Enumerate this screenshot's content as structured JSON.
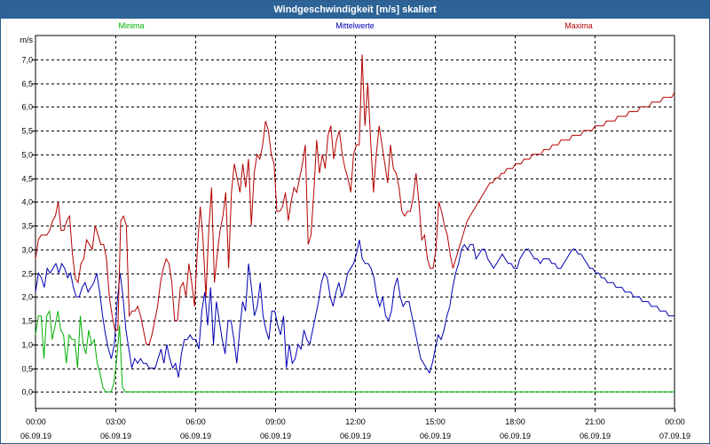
{
  "title": "Windgeschwindigkeit [m/s] skaliert",
  "chart_data": {
    "type": "line",
    "title": "Windgeschwindigkeit [m/s] skaliert",
    "ylabel": "m/s",
    "xlabel": "",
    "ylim": [
      -0.35,
      7.5
    ],
    "xlim": [
      0,
      24
    ],
    "grid": true,
    "legend_placement": "top",
    "y_ticks": [
      "0,0",
      "0,5",
      "1,0",
      "1,5",
      "2,0",
      "2,5",
      "3,0",
      "3,5",
      "4,0",
      "4,5",
      "5,0",
      "5,5",
      "6,0",
      "6,5",
      "7,0"
    ],
    "x_ticks": [
      {
        "time": "00:00",
        "date": "06.09.19"
      },
      {
        "time": "03:00",
        "date": "06.09.19"
      },
      {
        "time": "06:00",
        "date": "06.09.19"
      },
      {
        "time": "09:00",
        "date": "06.09.19"
      },
      {
        "time": "12:00",
        "date": "06.09.19"
      },
      {
        "time": "15:00",
        "date": "06.09.19"
      },
      {
        "time": "18:00",
        "date": "06.09.19"
      },
      {
        "time": "21:00",
        "date": "06.09.19"
      },
      {
        "time": "00:00",
        "date": "07.09.19"
      }
    ],
    "series": [
      {
        "name": "Minima",
        "color": "#00b000",
        "values": [
          1.2,
          1.6,
          1.6,
          0.7,
          1.6,
          1.7,
          1.1,
          1.4,
          1.7,
          1.3,
          1.2,
          0.6,
          1.2,
          1.1,
          1.1,
          0.5,
          1.6,
          1.0,
          0.8,
          1.3,
          1.0,
          1.1,
          0.6,
          0.4,
          0.1,
          0.0,
          0.0,
          0.0,
          0.2,
          0.7,
          1.4,
          0.1,
          0.0,
          0.0,
          0.0,
          0.0,
          0.0,
          0.0,
          0.0,
          0.0,
          0.0,
          0.0,
          0.0,
          0.0,
          0.0,
          0.0,
          0.0,
          0.0,
          0.0,
          0.0,
          0.0,
          0.0,
          0.0,
          0.0,
          0.0,
          0.0,
          0.0,
          0.0,
          0.0,
          0.0,
          0.0,
          0.0,
          0.0,
          0.0,
          0.0,
          0.0,
          0.0,
          0.0,
          0.0,
          0.0,
          0.0,
          0.0,
          0.0,
          0.0,
          0.0,
          0.0,
          0.0,
          0.0,
          0.0,
          0.0,
          0.0,
          0.0,
          0.0,
          0.0,
          0.0,
          0.0,
          0.0,
          0.0,
          0.0,
          0.0,
          0.0,
          0.0,
          0.0,
          0.0,
          0.0,
          0.0,
          0.0,
          0.0,
          0.0,
          0.0,
          0.0,
          0.0,
          0.0,
          0.0,
          0.0,
          0.0,
          0.0,
          0.0,
          0.0,
          0.0,
          0.0,
          0.0,
          0.0,
          0.0,
          0.0,
          0.0,
          0.0,
          0.0,
          0.0,
          0.0,
          0.0,
          0.0,
          0.0,
          0.0,
          0.0,
          0.0,
          0.0,
          0.0,
          0.0,
          0.0,
          0.0,
          0.0,
          0.0,
          0.0,
          0.0,
          0.0,
          0.0,
          0.0,
          0.0,
          0.0,
          0.0,
          0.0,
          0.0,
          0.0,
          0.0,
          0.0,
          0.0,
          0.0,
          0.0,
          0.0,
          0.0,
          0.0,
          0.0,
          0.0,
          0.0,
          0.0,
          0.0,
          0.0,
          0.0,
          0.0,
          0.0,
          0.0,
          0.0,
          0.0,
          0.0,
          0.0,
          0.0,
          0.0,
          0.0,
          0.0,
          0.0,
          0.0,
          0.0,
          0.0,
          0.0,
          0.0,
          0.0,
          0.0,
          0.0,
          0.0,
          0.0,
          0.0,
          0.0,
          0.0,
          0.0,
          0.0,
          0.0,
          0.0,
          0.0,
          0.0,
          0.0,
          0.0,
          0.0,
          0.0,
          0.0,
          0.0,
          0.0,
          0.0,
          0.0,
          0.0,
          0.0,
          0.0,
          0.0,
          0.0,
          0.0,
          0.0,
          0.0,
          0.0,
          0.0,
          0.0,
          0.0,
          0.0,
          0.0,
          0.0,
          0.0,
          0.0,
          0.0,
          0.0,
          0.0,
          0.0,
          0.0,
          0.0,
          0.0,
          0.0,
          0.0,
          0.0,
          0.0,
          0.0,
          0.0
        ]
      },
      {
        "name": "Mittelwerte",
        "color": "#0000b4",
        "values": [
          2.1,
          2.5,
          2.4,
          2.2,
          2.6,
          2.5,
          2.6,
          2.7,
          2.5,
          2.7,
          2.6,
          2.4,
          2.5,
          2.2,
          2.0,
          2.0,
          2.2,
          2.3,
          2.1,
          2.2,
          2.3,
          2.5,
          2.1,
          1.6,
          1.2,
          0.9,
          0.7,
          1.0,
          1.9,
          2.5,
          2.0,
          1.3,
          0.9,
          0.5,
          0.7,
          0.6,
          0.7,
          0.6,
          0.6,
          0.5,
          0.5,
          0.5,
          0.7,
          0.9,
          0.6,
          1.0,
          0.7,
          0.5,
          0.6,
          0.3,
          0.8,
          1.1,
          1.1,
          1.2,
          1.1,
          1.1,
          0.9,
          1.7,
          2.1,
          1.4,
          2.2,
          1.0,
          1.9,
          1.5,
          1.1,
          0.8,
          1.5,
          1.5,
          1.1,
          0.6,
          1.3,
          1.9,
          1.7,
          2.7,
          2.2,
          1.6,
          1.8,
          2.3,
          1.6,
          1.3,
          1.1,
          1.7,
          1.7,
          1.4,
          1.2,
          1.6,
          0.5,
          1.0,
          0.6,
          0.7,
          1.0,
          0.9,
          1.3,
          1.1,
          1.0,
          1.3,
          1.6,
          1.9,
          2.3,
          2.5,
          2.4,
          2.0,
          1.8,
          2.1,
          2.3,
          2.0,
          2.2,
          2.5,
          2.6,
          2.7,
          2.9,
          3.2,
          2.8,
          2.7,
          2.7,
          2.6,
          2.4,
          2.0,
          1.8,
          2.0,
          1.6,
          1.5,
          1.7,
          2.2,
          2.4,
          2.0,
          1.8,
          1.9,
          1.9,
          1.6,
          1.3,
          1.0,
          0.7,
          0.6,
          0.5,
          0.4,
          0.6,
          0.9,
          1.2,
          1.1,
          1.3,
          1.6,
          1.8,
          2.2,
          2.5,
          2.7,
          3.0,
          3.1,
          3.0,
          3.1,
          3.1,
          2.8,
          2.9,
          3.0,
          3.0,
          2.8,
          2.7,
          2.6,
          2.7,
          2.8,
          2.9,
          2.8,
          2.7,
          2.7,
          2.6,
          2.6,
          2.8,
          2.9,
          3.0,
          3.0,
          2.9,
          2.8,
          2.8,
          2.7,
          2.8,
          2.8,
          2.8,
          2.7,
          2.7,
          2.6,
          2.6,
          2.7,
          2.8,
          2.9,
          3.0,
          3.0,
          2.9,
          2.9,
          2.8,
          2.7,
          2.6,
          2.6,
          2.5,
          2.5,
          2.4,
          2.4,
          2.3,
          2.3,
          2.3,
          2.2,
          2.2,
          2.2,
          2.1,
          2.1,
          2.1,
          2.0,
          2.0,
          2.0,
          1.9,
          1.9,
          1.9,
          1.8,
          1.8,
          1.8,
          1.7,
          1.7,
          1.7,
          1.6,
          1.6,
          1.6
        ]
      },
      {
        "name": "Maxima",
        "color": "#b40000",
        "values": [
          2.8,
          3.2,
          3.3,
          3.3,
          3.3,
          3.4,
          3.6,
          3.7,
          4.0,
          3.4,
          3.4,
          3.6,
          3.7,
          2.9,
          2.4,
          2.3,
          2.7,
          2.8,
          3.2,
          3.1,
          3.0,
          3.5,
          3.3,
          3.1,
          3.1,
          2.8,
          2.0,
          1.6,
          1.3,
          1.3,
          3.6,
          3.7,
          3.5,
          1.6,
          1.7,
          1.7,
          1.8,
          1.6,
          1.3,
          1.0,
          1.0,
          1.2,
          1.5,
          1.8,
          2.3,
          2.6,
          2.8,
          2.7,
          2.3,
          1.5,
          1.5,
          2.2,
          2.3,
          2.0,
          2.7,
          2.3,
          1.8,
          3.0,
          3.9,
          3.2,
          2.0,
          3.4,
          4.3,
          2.3,
          2.9,
          3.4,
          3.7,
          4.2,
          2.6,
          4.2,
          4.8,
          4.5,
          4.2,
          4.8,
          4.3,
          4.9,
          3.5,
          4.6,
          5.0,
          4.9,
          5.2,
          5.7,
          5.5,
          5.0,
          4.8,
          3.8,
          3.8,
          3.9,
          4.2,
          3.6,
          4.0,
          4.3,
          4.2,
          4.5,
          4.8,
          5.2,
          3.1,
          3.3,
          4.2,
          5.3,
          4.6,
          5.0,
          4.7,
          5.4,
          5.6,
          4.9,
          5.3,
          5.5,
          5.0,
          4.7,
          4.5,
          4.2,
          5.0,
          5.2,
          5.2,
          7.1,
          5.6,
          6.5,
          5.3,
          4.2,
          5.0,
          5.6,
          5.2,
          4.8,
          4.4,
          5.2,
          4.7,
          4.6,
          4.3,
          3.8,
          3.7,
          3.8,
          3.8,
          4.1,
          4.6,
          4.0,
          3.2,
          3.3,
          2.8,
          2.6,
          2.6,
          3.0,
          4.0,
          3.8,
          3.5,
          3.3,
          2.9,
          2.6,
          2.8,
          3.0,
          3.2,
          3.4,
          3.6,
          3.7,
          3.8,
          3.9,
          4.0,
          4.1,
          4.2,
          4.3,
          4.4,
          4.4,
          4.5,
          4.5,
          4.6,
          4.6,
          4.7,
          4.7,
          4.7,
          4.8,
          4.8,
          4.8,
          4.9,
          4.9,
          4.9,
          5.0,
          5.0,
          5.0,
          5.0,
          5.1,
          5.1,
          5.1,
          5.2,
          5.2,
          5.2,
          5.3,
          5.3,
          5.3,
          5.3,
          5.4,
          5.4,
          5.4,
          5.4,
          5.5,
          5.5,
          5.5,
          5.5,
          5.6,
          5.6,
          5.6,
          5.6,
          5.7,
          5.7,
          5.7,
          5.7,
          5.8,
          5.8,
          5.8,
          5.8,
          5.9,
          5.9,
          5.9,
          5.9,
          6.0,
          6.0,
          6.0,
          6.0,
          6.1,
          6.1,
          6.1,
          6.1,
          6.2,
          6.2,
          6.2,
          6.2,
          6.3
        ]
      }
    ]
  }
}
